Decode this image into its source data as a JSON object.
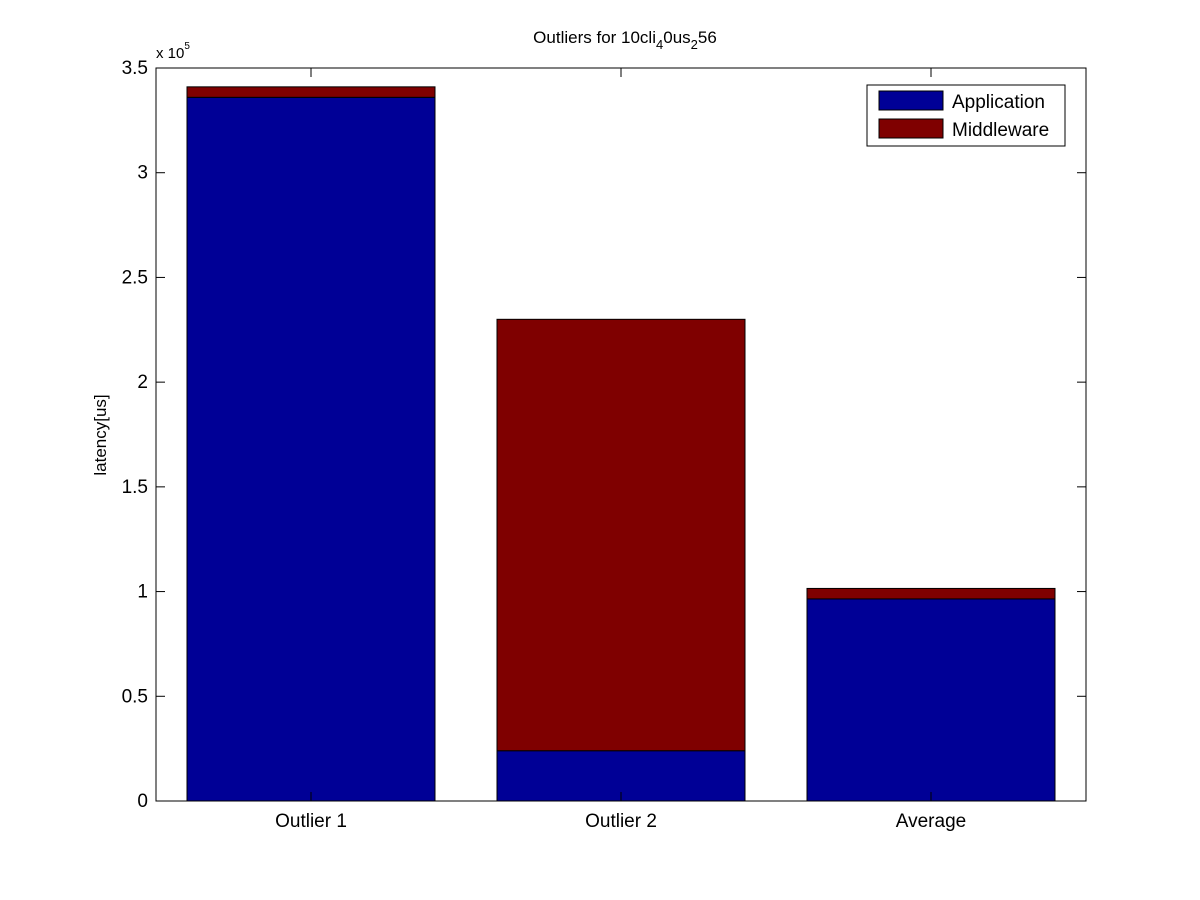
{
  "chart_data": {
    "type": "bar",
    "stacked": true,
    "title": {
      "base": "Outliers for 10cli",
      "sub1": "4",
      "mid": "0us",
      "sub2": "2",
      "tail": "56"
    },
    "xlabel": "",
    "ylabel": "latency[us]",
    "categories": [
      "Outlier 1",
      "Outlier 2",
      "Average"
    ],
    "series": [
      {
        "name": "Application",
        "color": "#000096",
        "values": [
          336000,
          24000,
          96500
        ]
      },
      {
        "name": "Middleware",
        "color": "#7f0000",
        "values": [
          5000,
          206000,
          5000
        ]
      }
    ],
    "ylim": [
      0,
      350000
    ],
    "y_scale_factor": 100000,
    "y_multiplier_label": {
      "base": "x 10",
      "exponent": "5"
    },
    "yticks": [
      0,
      50000,
      100000,
      150000,
      200000,
      250000,
      300000,
      350000
    ],
    "ytick_labels": [
      "0",
      "0.5",
      "1",
      "1.5",
      "2",
      "2.5",
      "3",
      "3.5"
    ],
    "legend_position": "top-right",
    "grid": false
  }
}
